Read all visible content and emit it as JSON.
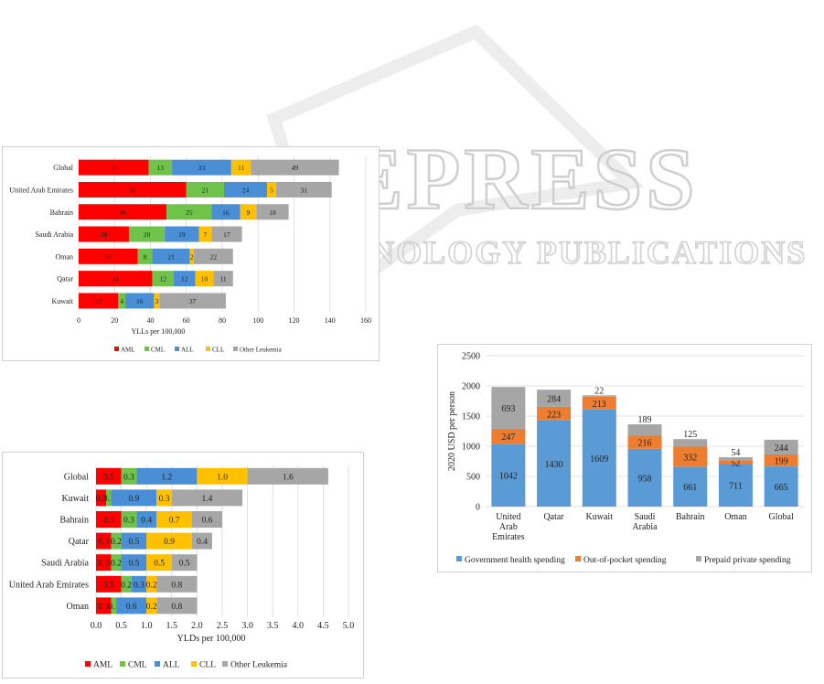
{
  "watermark": {
    "line1": "SCITEPRESS",
    "line2": "SCIENCE AND TECHNOLOGY PUBLICATIONS"
  },
  "colors": {
    "AML": "#ff0000",
    "CML": "#70c34a",
    "ALL": "#4a8fd6",
    "CLL": "#ffc000",
    "Other": "#a6a6a6",
    "gov": "#5b9bd5",
    "oop": "#ed7d31",
    "prepaid": "#a5a5a5"
  },
  "chart_data": [
    {
      "type": "bar",
      "orientation": "horizontal",
      "stacked": true,
      "categories": [
        "Global",
        "United Arab Emirates",
        "Bahrain",
        "Saudi Arabia",
        "Oman",
        "Qatar",
        "Kuwait"
      ],
      "series": [
        {
          "name": "AML",
          "values": [
            39,
            60,
            49,
            28,
            33,
            41,
            22
          ]
        },
        {
          "name": "CML",
          "values": [
            13,
            21,
            25,
            20,
            8,
            12,
            4
          ]
        },
        {
          "name": "ALL",
          "values": [
            33,
            24,
            16,
            19,
            21,
            12,
            16
          ]
        },
        {
          "name": "CLL",
          "values": [
            11,
            5,
            9,
            7,
            2,
            10,
            3
          ]
        },
        {
          "name": "Other Leukemia",
          "values": [
            49,
            31,
            18,
            17,
            22,
            11,
            37
          ]
        }
      ],
      "xlabel": "YLLs per 100,000",
      "xlim": [
        0,
        160
      ],
      "xticks": [
        0,
        20,
        40,
        60,
        80,
        100,
        120,
        140,
        160
      ],
      "grid": true,
      "legend": "bottom"
    },
    {
      "type": "bar",
      "orientation": "horizontal",
      "stacked": true,
      "categories": [
        "Global",
        "Kuwait",
        "Bahrain",
        "Qatar",
        "Saudi Arabia",
        "United Arab Emirates",
        "Oman"
      ],
      "series": [
        {
          "name": "AML",
          "values": [
            0.5,
            0.2,
            0.5,
            0.3,
            0.3,
            0.5,
            0.3
          ]
        },
        {
          "name": "CML",
          "values": [
            0.3,
            0.1,
            0.3,
            0.2,
            0.2,
            0.2,
            0.1
          ]
        },
        {
          "name": "ALL",
          "values": [
            1.2,
            0.9,
            0.4,
            0.5,
            0.5,
            0.3,
            0.6
          ]
        },
        {
          "name": "CLL",
          "values": [
            1.0,
            0.3,
            0.7,
            0.9,
            0.5,
            0.2,
            0.2
          ]
        },
        {
          "name": "Other Leukemia",
          "values": [
            1.6,
            1.4,
            0.6,
            0.4,
            0.5,
            0.8,
            0.8
          ]
        }
      ],
      "labels": [
        [
          "0.5",
          "0.3",
          "1.2",
          "1.0",
          "1.6"
        ],
        [
          "0.2",
          "0.1",
          "0.9",
          "0.3",
          "1.4"
        ],
        [
          "0.5",
          "0.3",
          "0.4",
          "0.7",
          "0.6"
        ],
        [
          "0.3",
          "0.2",
          "0.5",
          "0.9",
          "0.4"
        ],
        [
          "0.3",
          "0.2",
          "0.5",
          "0.5",
          "0.5"
        ],
        [
          "0.5",
          "0.2",
          "0.3",
          "0.2",
          "0.8"
        ],
        [
          "0.3",
          "0.1",
          "0.6",
          "0.2",
          "0.8"
        ]
      ],
      "xlabel": "YLDs per 100,000",
      "xlim": [
        0,
        5
      ],
      "xticks": [
        "0.0",
        "0.5",
        "1.0",
        "1.5",
        "2.0",
        "2.5",
        "3.0",
        "3.5",
        "4.0",
        "4.5",
        "5.0"
      ],
      "grid": true,
      "legend": "bottom"
    },
    {
      "type": "bar",
      "orientation": "vertical",
      "stacked": true,
      "categories": [
        [
          "United",
          "Arab",
          "Emirates"
        ],
        [
          "Qatar"
        ],
        [
          "Kuwait"
        ],
        [
          "Saudi",
          "Arabia"
        ],
        [
          "Bahrain"
        ],
        [
          "Oman"
        ],
        [
          "Global"
        ]
      ],
      "series": [
        {
          "name": "Government health spending",
          "values": [
            1042,
            1430,
            1609,
            958,
            661,
            711,
            665
          ]
        },
        {
          "name": "Out-of-pocket spending",
          "values": [
            247,
            223,
            213,
            216,
            332,
            52,
            199
          ]
        },
        {
          "name": "Prepaid private spending",
          "values": [
            693,
            284,
            22,
            189,
            125,
            54,
            244
          ]
        }
      ],
      "ylabel": "2020 USD per person",
      "ylim": [
        0,
        2500
      ],
      "yticks": [
        0,
        500,
        1000,
        1500,
        2000,
        2500
      ],
      "grid": true,
      "legend": "bottom"
    }
  ]
}
